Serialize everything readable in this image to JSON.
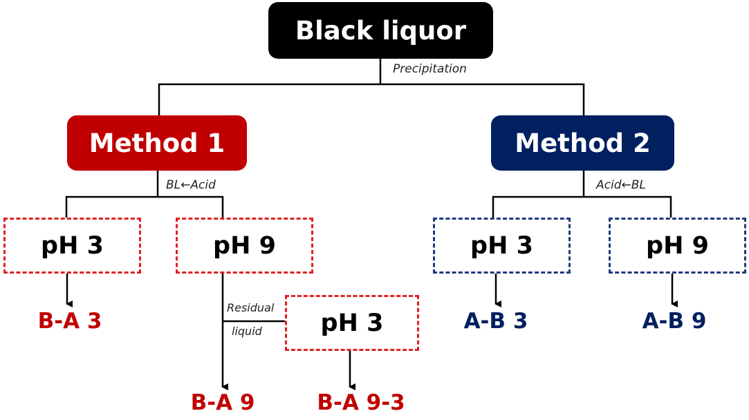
{
  "colors": {
    "root": "#000000",
    "method1": "#c00000",
    "method2": "#002060",
    "line": "#000000"
  },
  "root": {
    "label": "Black liquor"
  },
  "root_edge_label": "Precipitation",
  "method1": {
    "label": "Method 1",
    "edge_label": "BL←Acid",
    "ph3": {
      "label": "pH 3",
      "product": "B-A 3"
    },
    "ph9": {
      "label": "pH 9",
      "product": "B-A 9"
    },
    "residual_label_line1": "Residual",
    "residual_label_line2": "liquid",
    "ph9_ph3": {
      "label": "pH 3",
      "product": "B-A 9-3"
    }
  },
  "method2": {
    "label": "Method 2",
    "edge_label": "Acid←BL",
    "ph3": {
      "label": "pH 3",
      "product": "A-B 3"
    },
    "ph9": {
      "label": "pH 9",
      "product": "A-B 9"
    }
  }
}
